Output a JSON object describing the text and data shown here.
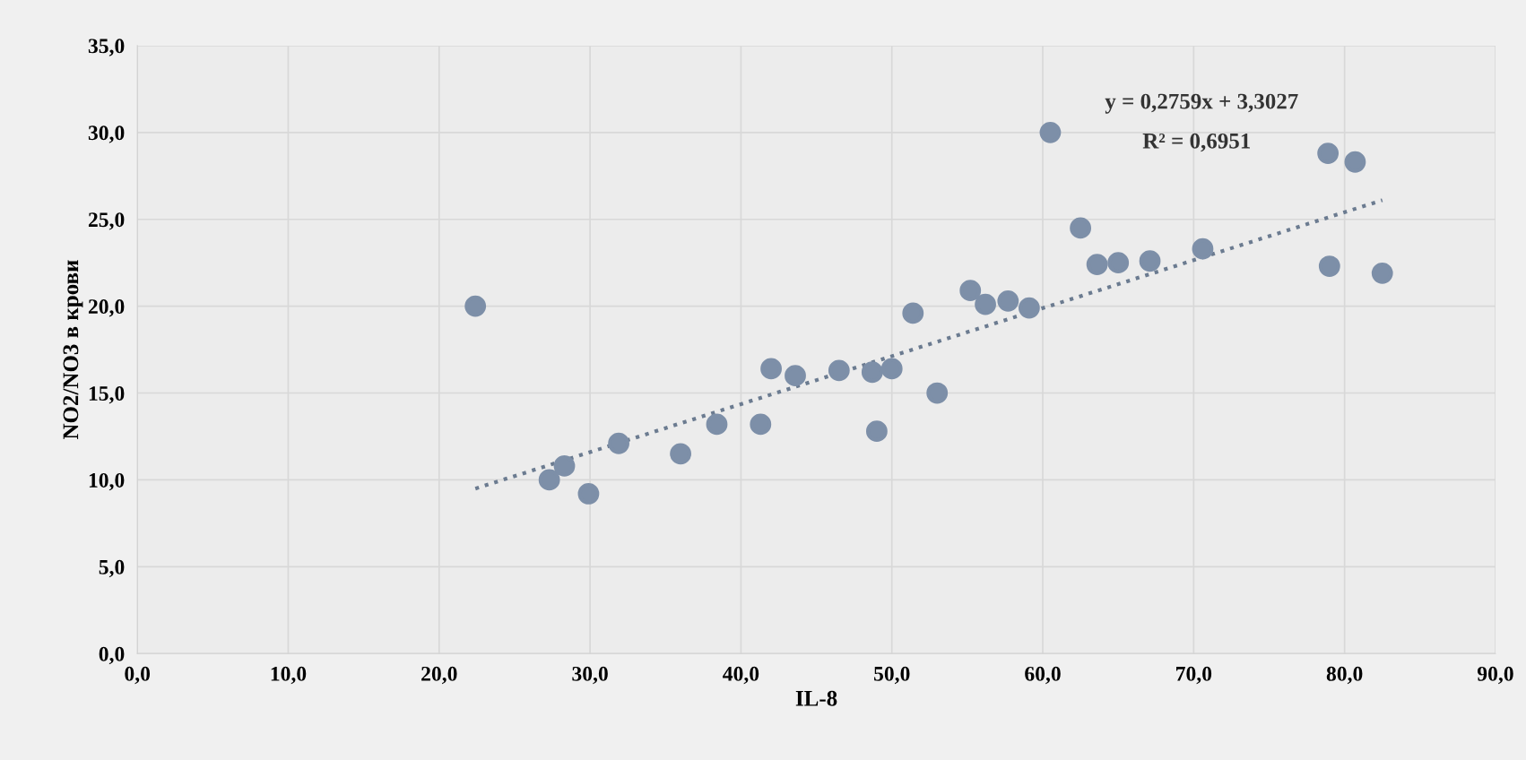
{
  "chart_data": {
    "type": "scatter",
    "xlabel": "IL-8",
    "ylabel": "NO2/NO3 в крови",
    "xlim": [
      0,
      90
    ],
    "ylim": [
      0,
      35
    ],
    "xticks": [
      {
        "value": 0,
        "label": "0,0"
      },
      {
        "value": 10,
        "label": "10,0"
      },
      {
        "value": 20,
        "label": "20,0"
      },
      {
        "value": 30,
        "label": "30,0"
      },
      {
        "value": 40,
        "label": "40,0"
      },
      {
        "value": 50,
        "label": "50,0"
      },
      {
        "value": 60,
        "label": "60,0"
      },
      {
        "value": 70,
        "label": "70,0"
      },
      {
        "value": 80,
        "label": "80,0"
      },
      {
        "value": 90,
        "label": "90,0"
      }
    ],
    "yticks": [
      {
        "value": 0,
        "label": "0,0"
      },
      {
        "value": 5,
        "label": "5,0"
      },
      {
        "value": 10,
        "label": "10,0"
      },
      {
        "value": 15,
        "label": "15,0"
      },
      {
        "value": 20,
        "label": "20,0"
      },
      {
        "value": 25,
        "label": "25,0"
      },
      {
        "value": 30,
        "label": "30,0"
      },
      {
        "value": 35,
        "label": "35,0"
      }
    ],
    "grid": true,
    "legend": false,
    "annotations": [
      "y = 0,2759x + 3,3027",
      "R² = 0,6951"
    ],
    "series": [
      {
        "color": "#7d8fa8",
        "marker": "circle",
        "x": [
          22.4,
          27.3,
          28.3,
          29.9,
          31.9,
          36.0,
          38.4,
          41.3,
          42.0,
          43.6,
          46.5,
          48.7,
          50.0,
          49.0,
          51.4,
          53.0,
          55.2,
          56.2,
          57.7,
          59.1,
          60.5,
          62.5,
          63.6,
          65.0,
          67.1,
          70.6,
          79.0,
          78.9,
          80.7,
          82.5
        ],
        "values": [
          20.0,
          10.0,
          10.8,
          9.2,
          12.1,
          11.5,
          13.2,
          13.2,
          16.4,
          16.0,
          16.3,
          16.2,
          16.4,
          12.8,
          19.6,
          15.0,
          20.9,
          20.1,
          20.3,
          19.9,
          30.0,
          24.5,
          22.4,
          22.5,
          22.6,
          23.3,
          22.3,
          28.8,
          28.3,
          21.9
        ]
      },
      {
        "type": "line",
        "color": "#6b7b90",
        "line_style": "dotted",
        "x": [
          22.4,
          82.5
        ],
        "values": [
          9.5,
          26.1
        ]
      }
    ]
  }
}
